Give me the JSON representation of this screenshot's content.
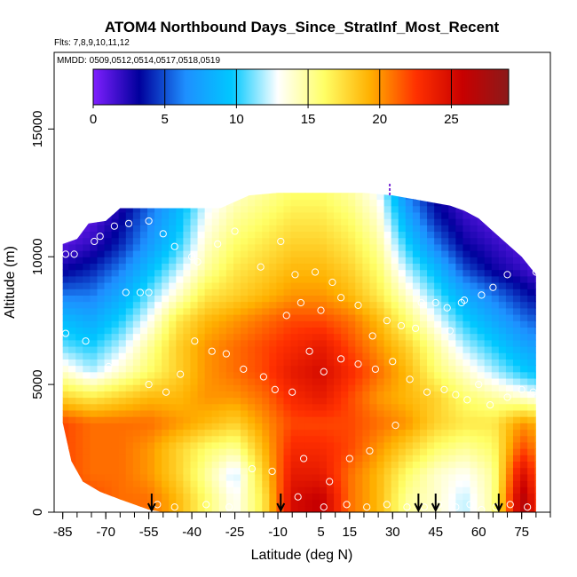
{
  "chart_data": {
    "type": "heatmap",
    "title": "ATOM4 Northbound Days_Since_StratInf_Most_Recent",
    "flights_label": "Flts: 7,8,9,10,11,12",
    "dates_label": "MMDD: 0509,0512,0514,0517,0518,0519",
    "xlabel": "Latitude (deg N)",
    "ylabel": "Altitude (m)",
    "xlim": [
      -88,
      85
    ],
    "ylim": [
      0,
      18000
    ],
    "x_ticks": [
      -85,
      -70,
      -55,
      -40,
      -25,
      -10,
      5,
      15,
      30,
      45,
      60,
      75
    ],
    "x_tick_labels": [
      "-85",
      "-70",
      "-55",
      "-40",
      "-25",
      "-10",
      "5",
      "15",
      "30",
      "45",
      "60",
      "75"
    ],
    "y_ticks": [
      0,
      5000,
      10000,
      15000
    ],
    "y_tick_labels": [
      "0",
      "5000",
      "10000",
      "15000"
    ],
    "colorbar": {
      "range": [
        0,
        29
      ],
      "ticks": [
        0,
        5,
        10,
        15,
        20,
        25
      ],
      "tick_labels": [
        "0",
        "5",
        "10",
        "15",
        "20",
        "25"
      ],
      "colors": [
        "#7f1fff",
        "#00009c",
        "#1e8fff",
        "#00c8ff",
        "#ffffff",
        "#ffff66",
        "#ffb000",
        "#ff3000",
        "#c80000",
        "#8b1a1a"
      ]
    },
    "top_boundary": [
      [
        -85,
        10500
      ],
      [
        -80,
        10700
      ],
      [
        -76,
        11300
      ],
      [
        -70,
        11400
      ],
      [
        -65,
        11900
      ],
      [
        -55,
        11900
      ],
      [
        -40,
        11900
      ],
      [
        -30,
        11900
      ],
      [
        -20,
        12400
      ],
      [
        -10,
        12500
      ],
      [
        0,
        12500
      ],
      [
        10,
        12500
      ],
      [
        20,
        12500
      ],
      [
        30,
        12400
      ],
      [
        40,
        12200
      ],
      [
        50,
        12000
      ],
      [
        55,
        11800
      ],
      [
        60,
        11500
      ],
      [
        65,
        11000
      ],
      [
        70,
        10500
      ],
      [
        75,
        10000
      ],
      [
        80,
        9300
      ]
    ],
    "bottom_boundary": [
      [
        -85,
        3500
      ],
      [
        -82,
        2000
      ],
      [
        -78,
        1200
      ],
      [
        -72,
        800
      ],
      [
        -65,
        500
      ],
      [
        -60,
        300
      ],
      [
        -55,
        100
      ],
      [
        -50,
        0
      ],
      [
        75,
        0
      ],
      [
        80,
        0
      ],
      [
        80,
        500
      ]
    ],
    "field_nodes_lat": [
      -85,
      -75,
      -65,
      -55,
      -45,
      -35,
      -25,
      -15,
      -5,
      5,
      15,
      25,
      35,
      45,
      55,
      65,
      75,
      82
    ],
    "field_nodes_alt": [
      500,
      1500,
      2500,
      3500,
      4500,
      5500,
      6500,
      7500,
      8500,
      9500,
      10500,
      11500,
      12500
    ],
    "field_values": [
      [
        23,
        22,
        21,
        21,
        19,
        16,
        13,
        17,
        25,
        26,
        21,
        19,
        15,
        14,
        12,
        15,
        27,
        22
      ],
      [
        22,
        21,
        21,
        20,
        18,
        15,
        12,
        18,
        24,
        24,
        21,
        19,
        16,
        14,
        13,
        15,
        25,
        21
      ],
      [
        22,
        21,
        21,
        20,
        18,
        16,
        15,
        19,
        23,
        23,
        22,
        20,
        18,
        16,
        15,
        16,
        22,
        20
      ],
      [
        22,
        21,
        21,
        21,
        20,
        19,
        18,
        20,
        22,
        22,
        22,
        21,
        20,
        18,
        17,
        17,
        20,
        19
      ],
      [
        18,
        17,
        18,
        19,
        19,
        20,
        20,
        21,
        23,
        24,
        22,
        20,
        19,
        18,
        16,
        15,
        14,
        13
      ],
      [
        14,
        12,
        14,
        16,
        18,
        20,
        21,
        22,
        24,
        25,
        23,
        21,
        19,
        16,
        14,
        12,
        10,
        9
      ],
      [
        11,
        10,
        12,
        15,
        18,
        20,
        21,
        22,
        23,
        24,
        22,
        20,
        18,
        15,
        12,
        10,
        8,
        7
      ],
      [
        9,
        8,
        10,
        13,
        17,
        19,
        20,
        21,
        22,
        22,
        21,
        19,
        16,
        13,
        10,
        8,
        6,
        5
      ],
      [
        6,
        6,
        8,
        11,
        14,
        17,
        18,
        19,
        20,
        20,
        19,
        17,
        14,
        11,
        8,
        6,
        4,
        3
      ],
      [
        3,
        4,
        6,
        9,
        12,
        15,
        17,
        18,
        19,
        19,
        18,
        16,
        12,
        9,
        5,
        3,
        2,
        1
      ],
      [
        1,
        2,
        4,
        7,
        10,
        14,
        16,
        17,
        18,
        18,
        17,
        15,
        10,
        6,
        3,
        2,
        1,
        0
      ],
      [
        0,
        1,
        3,
        6,
        9,
        13,
        15,
        16,
        17,
        17,
        16,
        14,
        8,
        4,
        2,
        1,
        0,
        0
      ],
      [
        0,
        0,
        2,
        5,
        8,
        12,
        14,
        15,
        16,
        16,
        15,
        13,
        6,
        3,
        1,
        0,
        0,
        0
      ]
    ],
    "arrows_lat": [
      -54,
      -9,
      39,
      45,
      67
    ],
    "marker_lat": 29,
    "points": [
      [
        -84,
        10100
      ],
      [
        -81,
        10100
      ],
      [
        -74,
        10600
      ],
      [
        -72,
        10800
      ],
      [
        -67,
        11200
      ],
      [
        -62,
        11300
      ],
      [
        -55,
        11400
      ],
      [
        -50,
        10900
      ],
      [
        -46,
        10400
      ],
      [
        -40,
        10000
      ],
      [
        -38,
        9800
      ],
      [
        -31,
        10500
      ],
      [
        -25,
        11000
      ],
      [
        -16,
        9600
      ],
      [
        -9,
        10600
      ],
      [
        -4,
        9300
      ],
      [
        3,
        9400
      ],
      [
        9,
        9000
      ],
      [
        -63,
        8600
      ],
      [
        -58,
        8600
      ],
      [
        -55,
        8600
      ],
      [
        -84,
        7000
      ],
      [
        -77,
        6700
      ],
      [
        -69,
        5700
      ],
      [
        -55,
        5000
      ],
      [
        -49,
        4700
      ],
      [
        -44,
        5400
      ],
      [
        -39,
        6700
      ],
      [
        -33,
        6300
      ],
      [
        -28,
        6200
      ],
      [
        -22,
        5600
      ],
      [
        -15,
        5300
      ],
      [
        -11,
        4800
      ],
      [
        -5,
        4700
      ],
      [
        1,
        6300
      ],
      [
        6,
        5500
      ],
      [
        12,
        6000
      ],
      [
        18,
        5800
      ],
      [
        24,
        5600
      ],
      [
        30,
        5900
      ],
      [
        36,
        5200
      ],
      [
        42,
        4700
      ],
      [
        48,
        4800
      ],
      [
        52,
        4600
      ],
      [
        56,
        4400
      ],
      [
        60,
        5000
      ],
      [
        64,
        4200
      ],
      [
        70,
        4500
      ],
      [
        75,
        4800
      ],
      [
        79,
        4700
      ],
      [
        -19,
        1700
      ],
      [
        -12,
        1600
      ],
      [
        -1,
        2100
      ],
      [
        8,
        1200
      ],
      [
        15,
        2100
      ],
      [
        22,
        2400
      ],
      [
        31,
        3400
      ],
      [
        -3,
        600
      ],
      [
        6,
        200
      ],
      [
        14,
        300
      ],
      [
        21,
        200
      ],
      [
        28,
        300
      ],
      [
        35,
        200
      ],
      [
        41,
        200
      ],
      [
        46,
        300
      ],
      [
        52,
        200
      ],
      [
        57,
        300
      ],
      [
        61,
        100
      ],
      [
        66,
        200
      ],
      [
        71,
        300
      ],
      [
        77,
        200
      ],
      [
        -35,
        300
      ],
      [
        -27,
        200
      ],
      [
        -46,
        200
      ],
      [
        -52,
        300
      ],
      [
        40,
        8200
      ],
      [
        45,
        8200
      ],
      [
        49,
        8000
      ],
      [
        55,
        8300
      ],
      [
        61,
        8500
      ],
      [
        65,
        8800
      ],
      [
        70,
        9300
      ],
      [
        76,
        10400
      ],
      [
        80,
        9400
      ],
      [
        74,
        10700
      ],
      [
        54,
        8200
      ],
      [
        50,
        7100
      ],
      [
        38,
        7200
      ],
      [
        33,
        7300
      ],
      [
        28,
        7500
      ],
      [
        23,
        6900
      ],
      [
        18,
        8100
      ],
      [
        12,
        8400
      ],
      [
        5,
        7900
      ],
      [
        -2,
        8200
      ],
      [
        -7,
        7700
      ]
    ]
  }
}
